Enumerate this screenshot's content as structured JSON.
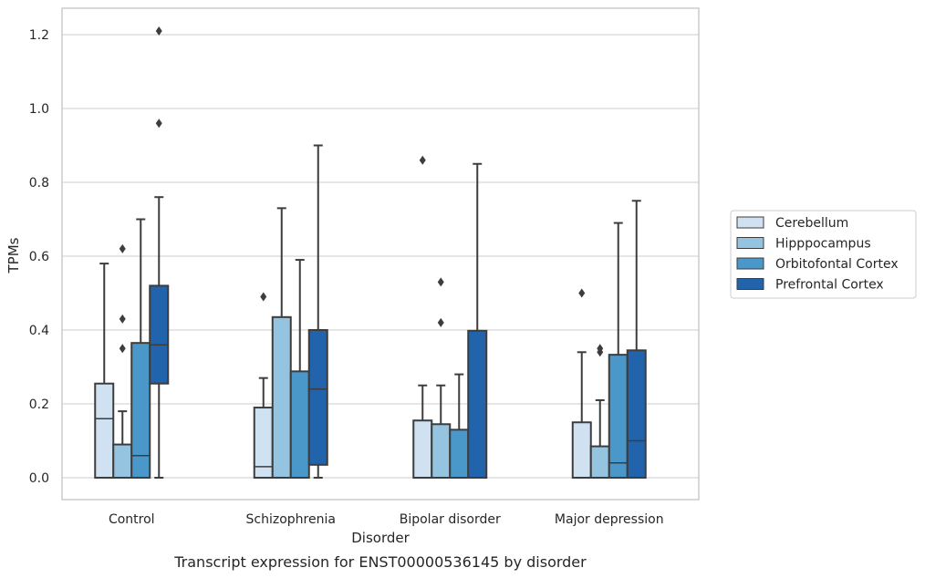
{
  "chart_data": {
    "type": "boxplot",
    "caption": "Transcript expression for ENST00000536145 by disorder",
    "xlabel": "Disorder",
    "ylabel": "TPMs",
    "ylim": [
      -0.06,
      1.27
    ],
    "yticks": [
      0.0,
      0.2,
      0.4,
      0.6,
      0.8,
      1.0,
      1.2
    ],
    "ytick_labels": [
      "0.0",
      "0.2",
      "0.4",
      "0.6",
      "0.8",
      "1.0",
      "1.2"
    ],
    "grid": true,
    "legend_position": "right",
    "categories": [
      "Control",
      "Schizophrenia",
      "Bipolar disorder",
      "Major depression"
    ],
    "series": [
      {
        "name": "Cerebellum",
        "color": "#d0e1f2",
        "boxes": [
          {
            "whislo": 0.0,
            "q1": 0.0,
            "med": 0.16,
            "q3": 0.255,
            "whishi": 0.58,
            "fliers": []
          },
          {
            "whislo": 0.0,
            "q1": 0.0,
            "med": 0.03,
            "q3": 0.19,
            "whishi": 0.27,
            "fliers": [
              0.49
            ]
          },
          {
            "whislo": 0.0,
            "q1": 0.0,
            "med": 0.0,
            "q3": 0.155,
            "whishi": 0.25,
            "fliers": [
              0.86
            ]
          },
          {
            "whislo": 0.0,
            "q1": 0.0,
            "med": 0.0,
            "q3": 0.15,
            "whishi": 0.34,
            "fliers": [
              0.5
            ]
          }
        ]
      },
      {
        "name": "Hipppocampus",
        "color": "#94c4df",
        "boxes": [
          {
            "whislo": 0.0,
            "q1": 0.0,
            "med": 0.0,
            "q3": 0.09,
            "whishi": 0.18,
            "fliers": [
              0.35,
              0.43,
              0.62
            ]
          },
          {
            "whislo": 0.0,
            "q1": 0.0,
            "med": 0.0,
            "q3": 0.435,
            "whishi": 0.73,
            "fliers": []
          },
          {
            "whislo": 0.0,
            "q1": 0.0,
            "med": 0.0,
            "q3": 0.145,
            "whishi": 0.25,
            "fliers": [
              0.42,
              0.53
            ]
          },
          {
            "whislo": 0.0,
            "q1": 0.0,
            "med": 0.0,
            "q3": 0.085,
            "whishi": 0.21,
            "fliers": [
              0.34,
              0.35
            ]
          }
        ]
      },
      {
        "name": "Orbitofontal Cortex",
        "color": "#4a98c9",
        "boxes": [
          {
            "whislo": 0.0,
            "q1": 0.0,
            "med": 0.06,
            "q3": 0.365,
            "whishi": 0.7,
            "fliers": []
          },
          {
            "whislo": 0.0,
            "q1": 0.0,
            "med": 0.0,
            "q3": 0.288,
            "whishi": 0.59,
            "fliers": []
          },
          {
            "whislo": 0.0,
            "q1": 0.0,
            "med": 0.0,
            "q3": 0.13,
            "whishi": 0.28,
            "fliers": []
          },
          {
            "whislo": 0.0,
            "q1": 0.0,
            "med": 0.04,
            "q3": 0.333,
            "whishi": 0.69,
            "fliers": []
          }
        ]
      },
      {
        "name": "Prefrontal Cortex",
        "color": "#2164ab",
        "boxes": [
          {
            "whislo": 0.0,
            "q1": 0.255,
            "med": 0.36,
            "q3": 0.52,
            "whishi": 0.76,
            "fliers": [
              0.96,
              1.21
            ]
          },
          {
            "whislo": 0.0,
            "q1": 0.035,
            "med": 0.24,
            "q3": 0.4,
            "whishi": 0.9,
            "fliers": []
          },
          {
            "whislo": 0.0,
            "q1": 0.0,
            "med": 0.0,
            "q3": 0.398,
            "whishi": 0.85,
            "fliers": []
          },
          {
            "whislo": 0.0,
            "q1": 0.0,
            "med": 0.1,
            "q3": 0.345,
            "whishi": 0.75,
            "fliers": []
          }
        ]
      }
    ]
  }
}
